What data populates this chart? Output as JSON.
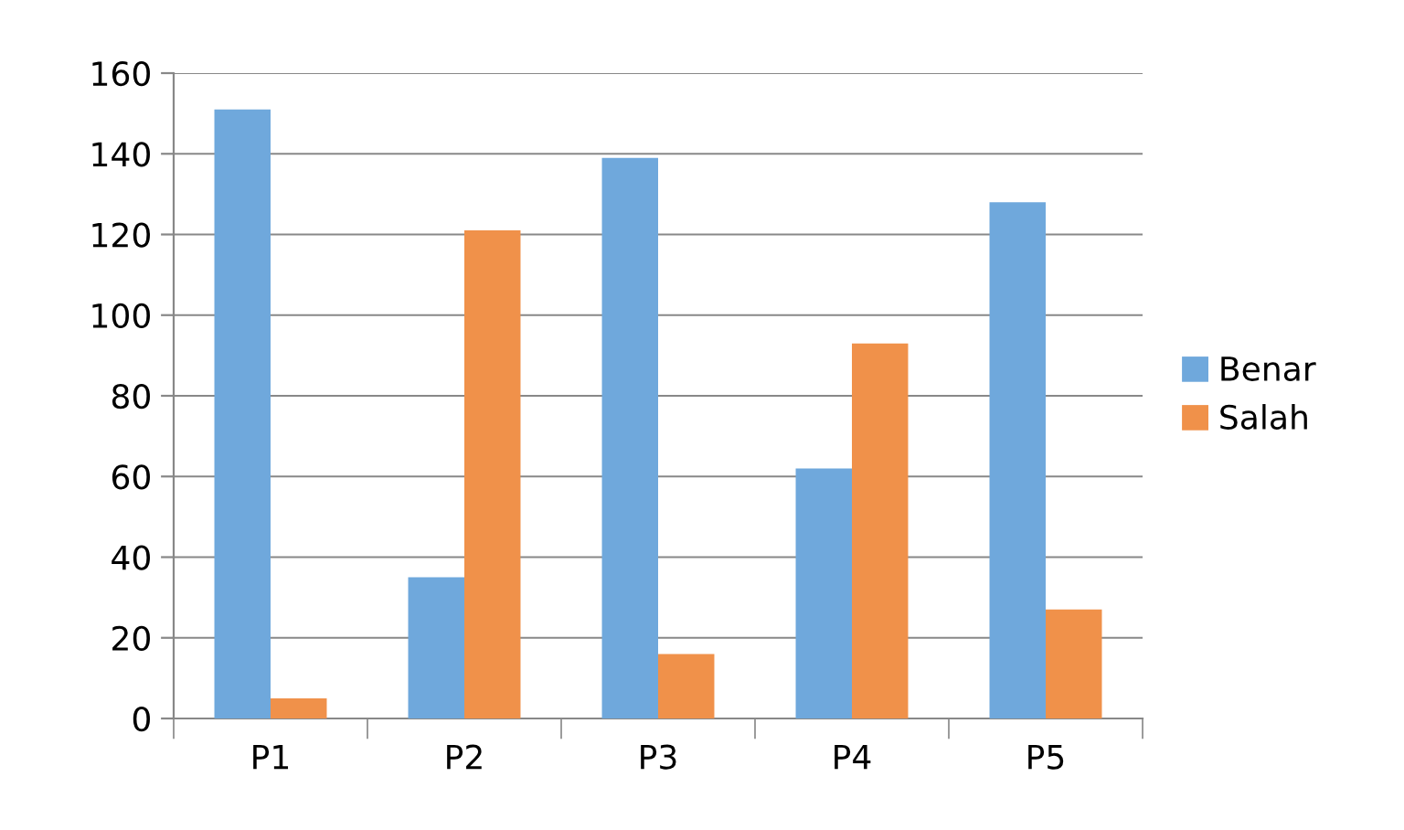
{
  "chart_data": {
    "type": "bar",
    "categories": [
      "P1",
      "P2",
      "P3",
      "P4",
      "P5"
    ],
    "series": [
      {
        "name": "Benar",
        "color": "#6fa8dc",
        "values": [
          151,
          35,
          139,
          62,
          128
        ]
      },
      {
        "name": "Salah",
        "color": "#f0914a",
        "values": [
          5,
          121,
          16,
          93,
          27
        ]
      }
    ],
    "ylim": [
      0,
      160
    ],
    "yticks": [
      0,
      20,
      40,
      60,
      80,
      100,
      120,
      140,
      160
    ],
    "grid": "y",
    "legend": "right"
  }
}
